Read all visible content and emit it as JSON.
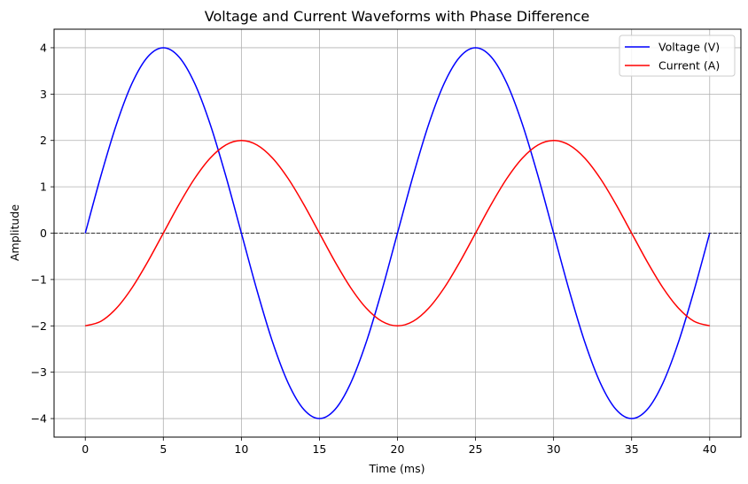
{
  "chart_data": {
    "type": "line",
    "title": "Voltage and Current Waveforms with Phase Difference",
    "xlabel": "Time (ms)",
    "ylabel": "Amplitude",
    "xlim": [
      -2,
      42
    ],
    "ylim": [
      -4.4,
      4.4
    ],
    "xticks": [
      0,
      5,
      10,
      15,
      20,
      25,
      30,
      35,
      40
    ],
    "yticks": [
      -4,
      -3,
      -2,
      -1,
      0,
      1,
      2,
      3,
      4
    ],
    "xtick_labels": [
      "0",
      "5",
      "10",
      "15",
      "20",
      "25",
      "30",
      "35",
      "40"
    ],
    "ytick_labels": [
      "−4",
      "−3",
      "−2",
      "−1",
      "0",
      "1",
      "2",
      "3",
      "4"
    ],
    "grid": true,
    "reference_line": {
      "y": 0,
      "style": "dashed",
      "color": "#000000"
    },
    "legend": {
      "position": "top-right",
      "entries": [
        "Voltage (V)",
        "Current (A)"
      ]
    },
    "series": [
      {
        "name": "Voltage (V)",
        "color": "#0000ff",
        "x": [
          0,
          1,
          2,
          3,
          4,
          5,
          6,
          7,
          8,
          9,
          10,
          11,
          12,
          13,
          14,
          15,
          16,
          17,
          18,
          19,
          20,
          21,
          22,
          23,
          24,
          25,
          26,
          27,
          28,
          29,
          30,
          31,
          32,
          33,
          34,
          35,
          36,
          37,
          38,
          39,
          40
        ],
        "y": [
          0,
          1.236,
          2.351,
          3.236,
          3.804,
          4,
          3.804,
          3.236,
          2.351,
          1.236,
          0,
          -1.236,
          -2.351,
          -3.236,
          -3.804,
          -4,
          -3.804,
          -3.236,
          -2.351,
          -1.236,
          0,
          1.236,
          2.351,
          3.236,
          3.804,
          4,
          3.804,
          3.236,
          2.351,
          1.236,
          0,
          -1.236,
          -2.351,
          -3.236,
          -3.804,
          -4,
          -3.804,
          -3.236,
          -2.351,
          -1.236,
          0
        ]
      },
      {
        "name": "Current (A)",
        "color": "#ff0000",
        "x": [
          0,
          1,
          2,
          3,
          4,
          5,
          6,
          7,
          8,
          9,
          10,
          11,
          12,
          13,
          14,
          15,
          16,
          17,
          18,
          19,
          20,
          21,
          22,
          23,
          24,
          25,
          26,
          27,
          28,
          29,
          30,
          31,
          32,
          33,
          34,
          35,
          36,
          37,
          38,
          39,
          40
        ],
        "y": [
          -2,
          -1.902,
          -1.618,
          -1.176,
          -0.618,
          0,
          0.618,
          1.176,
          1.618,
          1.902,
          2,
          1.902,
          1.618,
          1.176,
          0.618,
          0,
          -0.618,
          -1.176,
          -1.618,
          -1.902,
          -2,
          -1.902,
          -1.618,
          -1.176,
          -0.618,
          0,
          0.618,
          1.176,
          1.618,
          1.902,
          2,
          1.902,
          1.618,
          1.176,
          0.618,
          0,
          -0.618,
          -1.176,
          -1.618,
          -1.902,
          -2
        ]
      }
    ]
  }
}
